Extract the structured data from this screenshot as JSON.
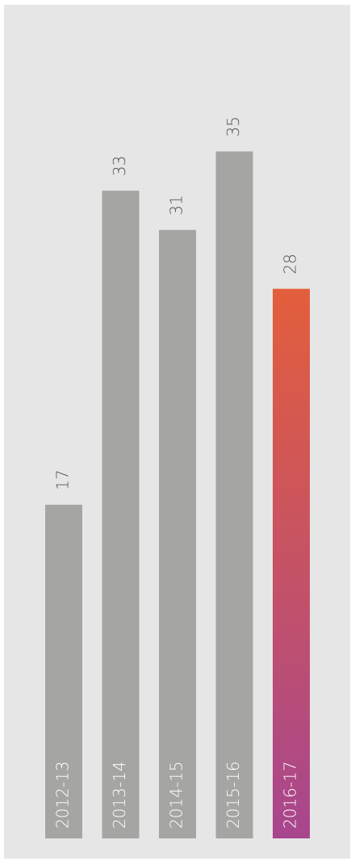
{
  "chart_data": {
    "type": "bar",
    "orientation": "vertical",
    "categories": [
      "2012-13",
      "2013-14",
      "2014-15",
      "2015-16",
      "2016-17"
    ],
    "values": [
      17,
      33,
      31,
      35,
      28
    ],
    "highlight_index": 4,
    "ylim": [
      0,
      40
    ],
    "grid": false,
    "legend": "none",
    "title": "",
    "xlabel": "",
    "ylabel": ""
  },
  "colors": {
    "background": "#e6e6e6",
    "bar": "#a5a5a3",
    "highlight_gradient_top": "#e35e3c",
    "highlight_gradient_bottom": "#a8468e",
    "value_label": "#555555",
    "category_label": "#ffffff"
  }
}
